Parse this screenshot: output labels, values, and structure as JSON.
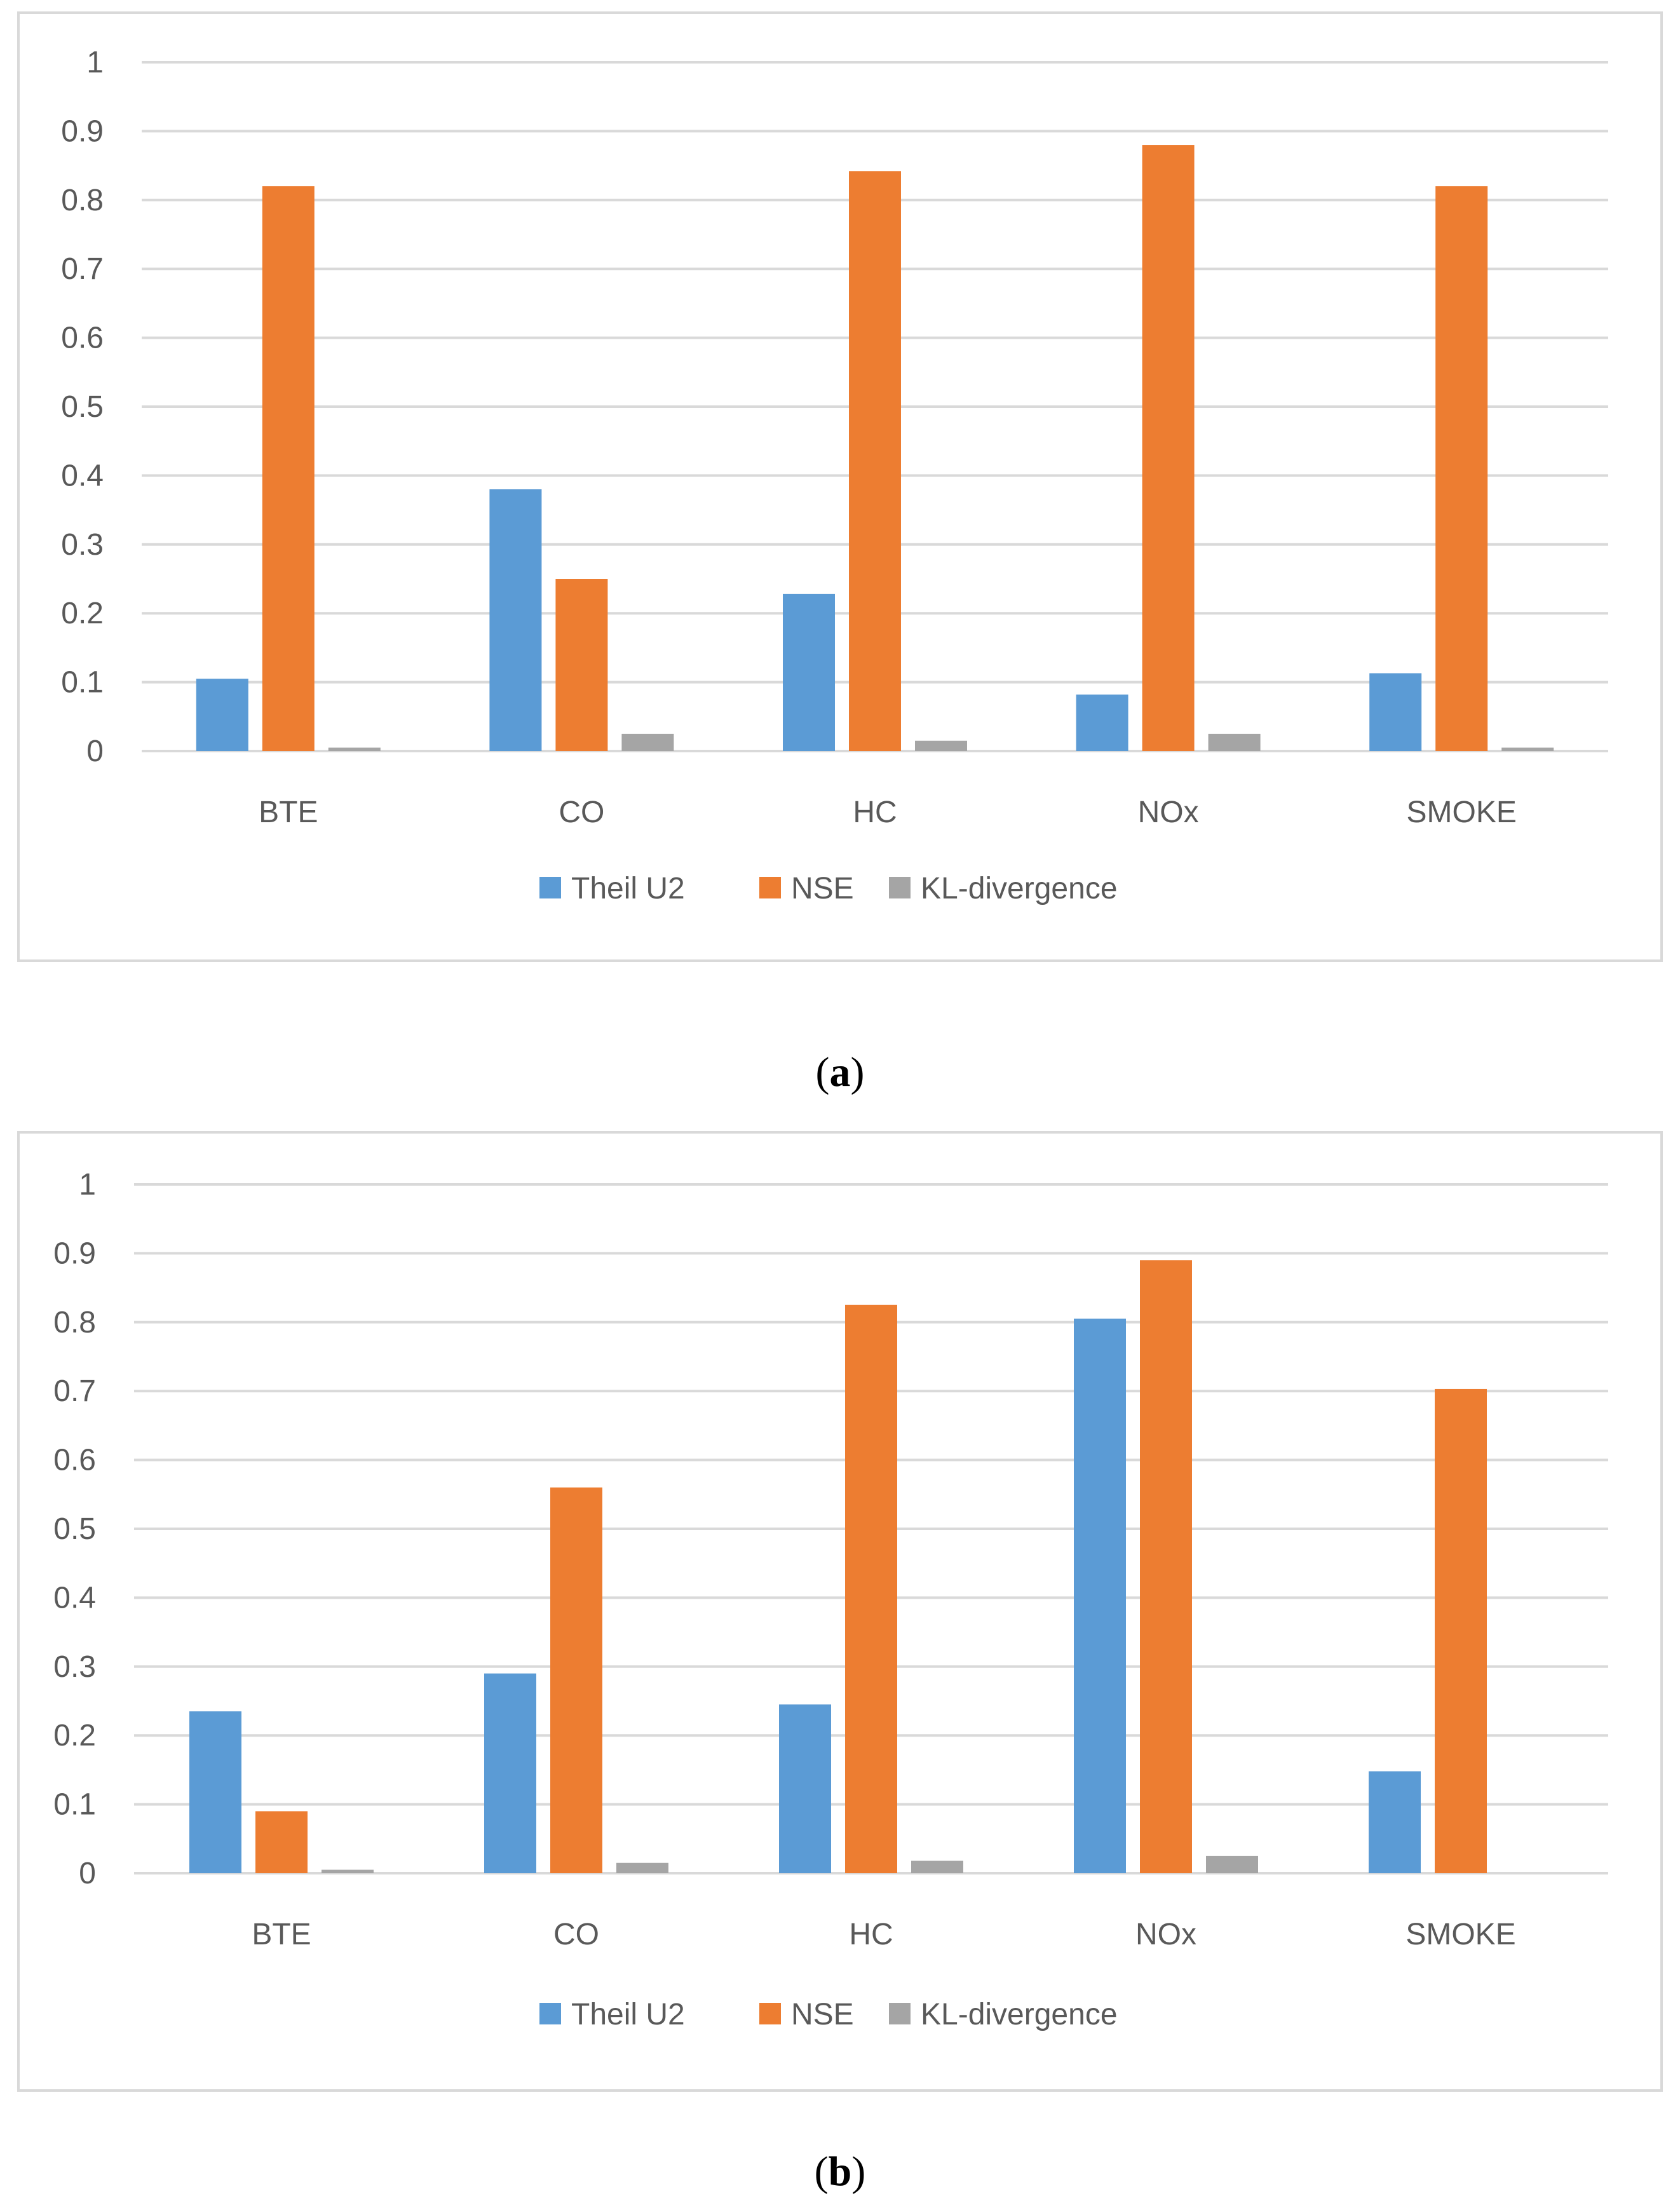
{
  "chart_data": [
    {
      "type": "bar",
      "caption": "a",
      "categories": [
        "BTE",
        "CO",
        "HC",
        "NOx",
        "SMOKE"
      ],
      "series": [
        {
          "name": "Theil U2",
          "color": "#5b9bd5",
          "values": [
            0.105,
            0.38,
            0.228,
            0.082,
            0.113
          ]
        },
        {
          "name": "NSE",
          "color": "#ed7d31",
          "values": [
            0.82,
            0.25,
            0.842,
            0.88,
            0.82
          ]
        },
        {
          "name": "KL-divergence",
          "color": "#a5a5a5",
          "values": [
            0.005,
            0.025,
            0.015,
            0.025,
            0.005
          ]
        }
      ],
      "yticks": [
        "0",
        "0.1",
        "0.2",
        "0.3",
        "0.4",
        "0.5",
        "0.6",
        "0.7",
        "0.8",
        "0.9",
        "1"
      ],
      "ylim": [
        0,
        1
      ],
      "title": "",
      "xlabel": "",
      "ylabel": "",
      "grid": true,
      "legend": "bottom"
    },
    {
      "type": "bar",
      "caption": "b",
      "categories": [
        "BTE",
        "CO",
        "HC",
        "NOx",
        "SMOKE"
      ],
      "series": [
        {
          "name": "Theil U2",
          "color": "#5b9bd5",
          "values": [
            0.235,
            0.29,
            0.245,
            0.805,
            0.148
          ]
        },
        {
          "name": "NSE",
          "color": "#ed7d31",
          "values": [
            0.09,
            0.56,
            0.825,
            0.89,
            0.703
          ]
        },
        {
          "name": "KL-divergence",
          "color": "#a5a5a5",
          "values": [
            0.005,
            0.015,
            0.018,
            0.025,
            0.0
          ]
        }
      ],
      "yticks": [
        "0",
        "0.1",
        "0.2",
        "0.3",
        "0.4",
        "0.5",
        "0.6",
        "0.7",
        "0.8",
        "0.9",
        "1"
      ],
      "ylim": [
        0,
        1
      ],
      "title": "",
      "xlabel": "",
      "ylabel": "",
      "grid": true,
      "legend": "bottom"
    }
  ]
}
